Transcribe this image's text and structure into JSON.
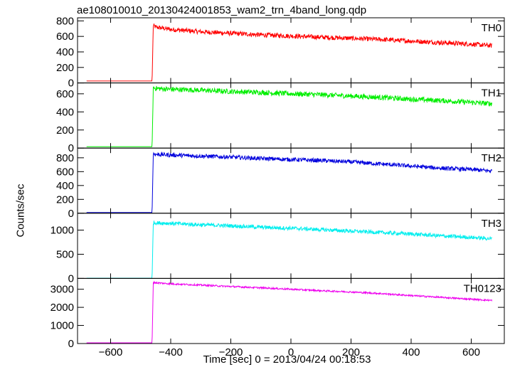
{
  "chart_data": {
    "type": "line",
    "title": "ae108010010_20130424001853_wam2_trn_4band_long.qdp",
    "xlabel": "Time [sec] 0 = 2013/04/24 00:18:53",
    "ylabel": "Counts/sec",
    "xlim": [
      -710,
      710
    ],
    "x_ticks": [
      -600,
      -400,
      -200,
      0,
      200,
      400,
      600
    ],
    "x_tick_labels": [
      "−600",
      "−400",
      "−200",
      "0",
      "200",
      "400",
      "600"
    ],
    "panels": [
      {
        "name": "TH0",
        "color": "#ff0000",
        "ylim": [
          0,
          840
        ],
        "y_ticks": [
          0,
          200,
          400,
          600,
          800
        ],
        "y_tick_labels": [
          "0",
          "200",
          "400",
          "600",
          "800"
        ],
        "x": [
          -680,
          -462,
          -458,
          -450,
          -400,
          -300,
          -200,
          -100,
          0,
          100,
          200,
          300,
          400,
          500,
          600,
          670
        ],
        "y": [
          25,
          25,
          740,
          720,
          690,
          660,
          640,
          620,
          605,
          590,
          575,
          560,
          540,
          520,
          500,
          480
        ],
        "noise": 30
      },
      {
        "name": "TH1",
        "color": "#00ee00",
        "ylim": [
          0,
          720
        ],
        "y_ticks": [
          0,
          200,
          400,
          600
        ],
        "y_tick_labels": [
          "0",
          "200",
          "400",
          "600"
        ],
        "x": [
          -680,
          -462,
          -458,
          -450,
          -400,
          -300,
          -200,
          -100,
          0,
          100,
          200,
          300,
          400,
          500,
          600,
          670
        ],
        "y": [
          15,
          15,
          670,
          660,
          650,
          640,
          625,
          615,
          600,
          590,
          575,
          560,
          540,
          525,
          505,
          490
        ],
        "noise": 28
      },
      {
        "name": "TH2",
        "color": "#0000dd",
        "ylim": [
          0,
          940
        ],
        "y_ticks": [
          0,
          200,
          400,
          600,
          800
        ],
        "y_tick_labels": [
          "0",
          "200",
          "400",
          "600",
          "800"
        ],
        "x": [
          -680,
          -462,
          -458,
          -450,
          -400,
          -300,
          -200,
          -100,
          0,
          100,
          200,
          300,
          400,
          500,
          600,
          670
        ],
        "y": [
          10,
          10,
          860,
          850,
          840,
          825,
          810,
          790,
          775,
          760,
          740,
          710,
          680,
          650,
          630,
          610
        ],
        "noise": 30
      },
      {
        "name": "TH3",
        "color": "#00eeee",
        "ylim": [
          0,
          1350
        ],
        "y_ticks": [
          0,
          500,
          1000
        ],
        "y_tick_labels": [
          "0",
          "500",
          "1000"
        ],
        "x": [
          -680,
          -462,
          -458,
          -450,
          -400,
          -300,
          -200,
          -100,
          0,
          100,
          200,
          300,
          400,
          500,
          600,
          670
        ],
        "y": [
          5,
          5,
          1160,
          1150,
          1140,
          1110,
          1090,
          1060,
          1040,
          1010,
          980,
          950,
          920,
          880,
          850,
          820
        ],
        "noise": 40
      },
      {
        "name": "TH0123",
        "color": "#ee00ee",
        "ylim": [
          0,
          3600
        ],
        "y_ticks": [
          0,
          1000,
          2000,
          3000
        ],
        "y_tick_labels": [
          "0",
          "1000",
          "2000",
          "3000"
        ],
        "x": [
          -680,
          -462,
          -458,
          -450,
          -400,
          -300,
          -200,
          -100,
          0,
          100,
          200,
          300,
          400,
          500,
          600,
          670
        ],
        "y": [
          40,
          40,
          3380,
          3360,
          3300,
          3230,
          3150,
          3080,
          3000,
          2920,
          2850,
          2760,
          2650,
          2550,
          2450,
          2380
        ],
        "noise": 45
      }
    ],
    "grid": false,
    "legend": "none"
  }
}
